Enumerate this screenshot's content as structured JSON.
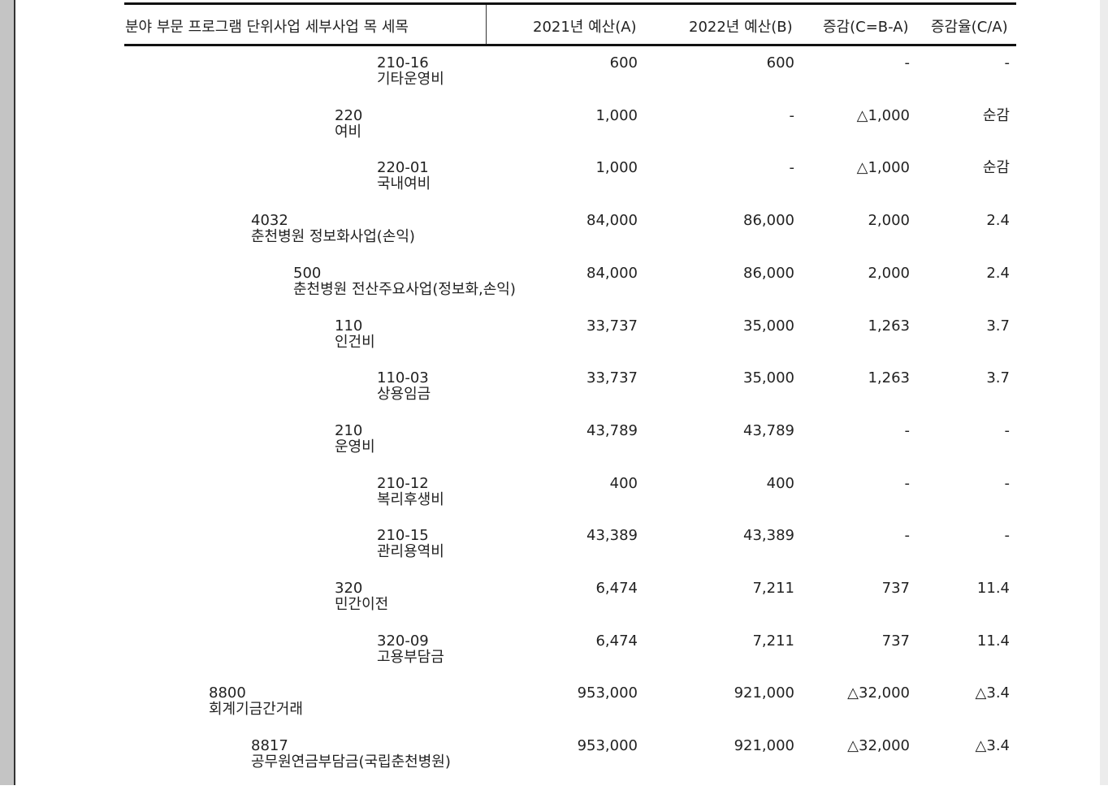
{
  "header": {
    "category": "분야 부문 프로그램 단위사업 세부사업 목 세목",
    "budget_2021": "2021년 예산(A)",
    "budget_2022": "2022년 예산(B)",
    "change": "증감(C=B-A)",
    "change_rate": "증감율(C/A)"
  },
  "rows": [
    {
      "level": 4,
      "code": "210-16",
      "name": "기타운영비",
      "a": "600",
      "b": "600",
      "c": "-",
      "rate": "-"
    },
    {
      "level": 3,
      "code": "220",
      "name": "여비",
      "a": "1,000",
      "b": "-",
      "c": "△1,000",
      "rate": "순감"
    },
    {
      "level": 4,
      "code": "220-01",
      "name": "국내여비",
      "a": "1,000",
      "b": "-",
      "c": "△1,000",
      "rate": "순감"
    },
    {
      "level": 1,
      "code": "4032",
      "name": "춘천병원 정보화사업(손익)",
      "a": "84,000",
      "b": "86,000",
      "c": "2,000",
      "rate": "2.4"
    },
    {
      "level": 2,
      "code": "500",
      "name": "춘천병원 전산주요사업(정보화,손익)",
      "a": "84,000",
      "b": "86,000",
      "c": "2,000",
      "rate": "2.4"
    },
    {
      "level": 3,
      "code": "110",
      "name": "인건비",
      "a": "33,737",
      "b": "35,000",
      "c": "1,263",
      "rate": "3.7"
    },
    {
      "level": 4,
      "code": "110-03",
      "name": "상용임금",
      "a": "33,737",
      "b": "35,000",
      "c": "1,263",
      "rate": "3.7"
    },
    {
      "level": 3,
      "code": "210",
      "name": "운영비",
      "a": "43,789",
      "b": "43,789",
      "c": "-",
      "rate": "-"
    },
    {
      "level": 4,
      "code": "210-12",
      "name": "복리후생비",
      "a": "400",
      "b": "400",
      "c": "-",
      "rate": "-"
    },
    {
      "level": 4,
      "code": "210-15",
      "name": "관리용역비",
      "a": "43,389",
      "b": "43,389",
      "c": "-",
      "rate": "-"
    },
    {
      "level": 3,
      "code": "320",
      "name": "민간이전",
      "a": "6,474",
      "b": "7,211",
      "c": "737",
      "rate": "11.4"
    },
    {
      "level": 4,
      "code": "320-09",
      "name": "고용부담금",
      "a": "6,474",
      "b": "7,211",
      "c": "737",
      "rate": "11.4"
    },
    {
      "level": 0,
      "code": "8800",
      "name": "회계기금간거래",
      "a": "953,000",
      "b": "921,000",
      "c": "△32,000",
      "rate": "△3.4"
    },
    {
      "level": 1,
      "code": "8817",
      "name": "공무원연금부담금(국립춘천병원)",
      "a": "953,000",
      "b": "921,000",
      "c": "△32,000",
      "rate": "△3.4"
    }
  ]
}
